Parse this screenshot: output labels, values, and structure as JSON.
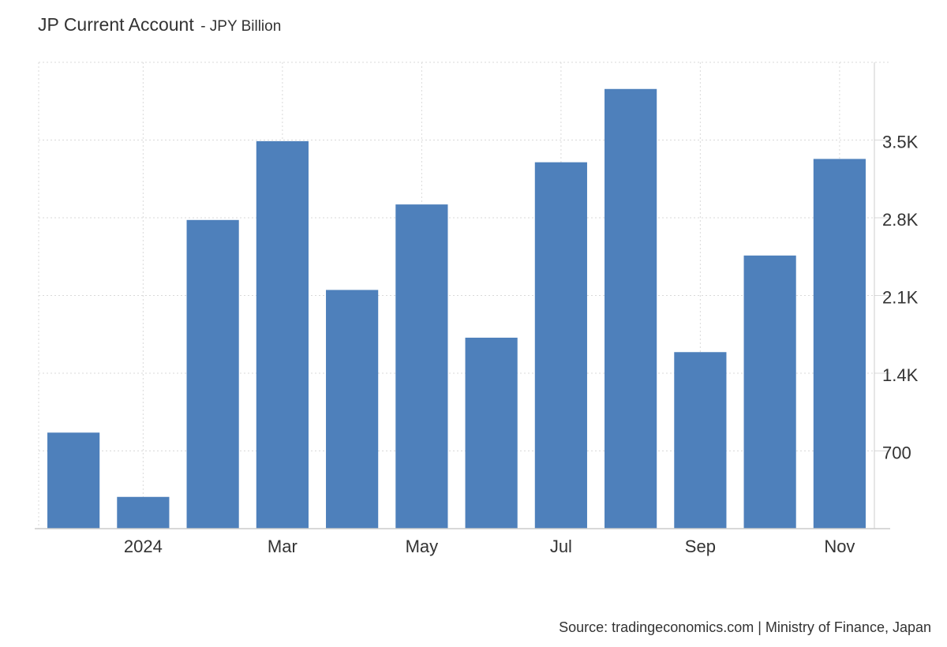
{
  "header": {
    "title": "JP Current Account",
    "subtitle": "- JPY Billion"
  },
  "footer": {
    "source": "Source: tradingeconomics.com | Ministry of Finance, Japan"
  },
  "chart_data": {
    "type": "bar",
    "title": "JP Current Account",
    "subtitle": "JPY Billion",
    "categories": [
      "2023-12",
      "2024-01",
      "2024-02",
      "2024-03",
      "2024-04",
      "2024-05",
      "2024-06",
      "2024-07",
      "2024-08",
      "2024-09",
      "2024-10",
      "2024-11"
    ],
    "values": [
      865,
      286,
      2780,
      3490,
      2150,
      2920,
      1720,
      3300,
      3960,
      1590,
      2460,
      3330
    ],
    "x_tick_labels": [
      {
        "category": "2024-01",
        "label": "2024"
      },
      {
        "category": "2024-03",
        "label": "Mar"
      },
      {
        "category": "2024-05",
        "label": "May"
      },
      {
        "category": "2024-07",
        "label": "Jul"
      },
      {
        "category": "2024-09",
        "label": "Sep"
      },
      {
        "category": "2024-11",
        "label": "Nov"
      }
    ],
    "y_ticks": [
      700,
      1400,
      2100,
      2800,
      3500
    ],
    "y_tick_labels": [
      "700",
      "1.4K",
      "2.1K",
      "2.8K",
      "3.5K"
    ],
    "ylim": [
      0,
      4200
    ],
    "y_axis_position": "right",
    "grid": true,
    "bar_color": "#4e80bb",
    "grid_color": "#d9d9d9"
  }
}
